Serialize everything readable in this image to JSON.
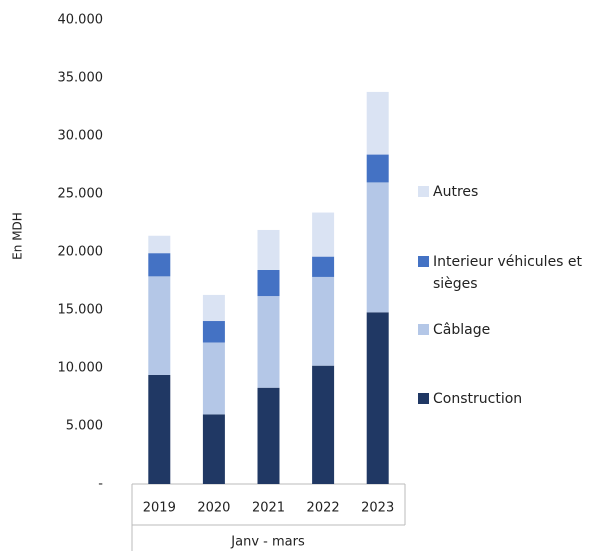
{
  "chart_data": {
    "type": "stacked_bar",
    "y_axis_label": "En MDH",
    "x_axis_label": "Janv - mars",
    "categories": [
      "2019",
      "2020",
      "2021",
      "2022",
      "2023"
    ],
    "series": [
      {
        "name": "Construction",
        "color": "#203864",
        "values": [
          9400,
          6000,
          8300,
          10200,
          14800
        ]
      },
      {
        "name": "Câblage",
        "color": "#b4c7e7",
        "values": [
          8500,
          6200,
          7900,
          7650,
          11200
        ]
      },
      {
        "name": "Interieur véhicules et sièges",
        "color": "#4472c4",
        "values": [
          2000,
          1850,
          2250,
          1750,
          2400
        ]
      },
      {
        "name": "Autres",
        "color": "#dae3f3",
        "values": [
          1500,
          2250,
          3450,
          3800,
          5400
        ]
      }
    ],
    "ylim": [
      0,
      40000
    ],
    "yticks": [
      {
        "value": 0,
        "label": "-"
      },
      {
        "value": 5000,
        "label": "5.000"
      },
      {
        "value": 10000,
        "label": "10.000"
      },
      {
        "value": 15000,
        "label": "15.000"
      },
      {
        "value": 20000,
        "label": "20.000"
      },
      {
        "value": 25000,
        "label": "25.000"
      },
      {
        "value": 30000,
        "label": "30.000"
      },
      {
        "value": 35000,
        "label": "35.000"
      },
      {
        "value": 40000,
        "label": "40.000"
      }
    ],
    "legend": "right"
  }
}
